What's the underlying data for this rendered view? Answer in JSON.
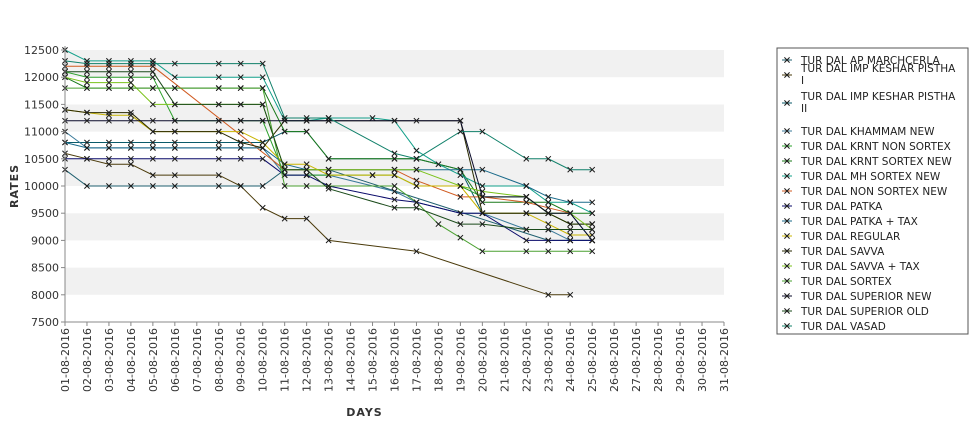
{
  "chart_data": {
    "type": "line",
    "title": "",
    "xlabel": "DAYS",
    "ylabel": "RATES",
    "ylim": [
      7500,
      12500
    ],
    "yticks": [
      7500,
      8000,
      8500,
      9000,
      9500,
      10000,
      10500,
      11000,
      11500,
      12000,
      12500
    ],
    "grid": "alternating horizontal bands",
    "legend_position": "right",
    "marker": "x",
    "x": [
      "01-08-2016",
      "02-08-2016",
      "03-08-2016",
      "04-08-2016",
      "05-08-2016",
      "06-08-2016",
      "07-08-2016",
      "08-08-2016",
      "09-08-2016",
      "10-08-2016",
      "11-08-2016",
      "12-08-2016",
      "13-08-2016",
      "14-08-2016",
      "15-08-2016",
      "16-08-2016",
      "17-08-2016",
      "18-08-2016",
      "19-08-2016",
      "20-08-2016",
      "21-08-2016",
      "22-08-2016",
      "23-08-2016",
      "24-08-2016",
      "25-08-2016",
      "26-08-2016",
      "27-08-2016",
      "28-08-2016",
      "29-08-2016",
      "30-08-2016",
      "31-08-2016"
    ],
    "series": [
      {
        "name": "TUR DAL AP MARCHCERLA",
        "color": "#1f5f6f",
        "values": [
          10300,
          10000,
          10000,
          10000,
          10000,
          10000,
          null,
          10000,
          10000,
          10000,
          10300,
          10300,
          10300,
          null,
          null,
          null,
          null,
          null,
          null,
          null,
          null,
          null,
          9000,
          9000,
          9000,
          null,
          null,
          null,
          null,
          null,
          null
        ]
      },
      {
        "name": "TUR DAL IMP KESHAR PISTHA I",
        "color": "#4a3a0a",
        "values": [
          10600,
          10500,
          10400,
          10400,
          10200,
          10200,
          null,
          10200,
          10000,
          9600,
          9400,
          9400,
          9000,
          null,
          null,
          null,
          8800,
          null,
          null,
          null,
          null,
          null,
          8000,
          8000,
          null,
          null,
          null,
          null,
          null,
          null,
          null
        ]
      },
      {
        "name": "TUR DAL IMP KESHAR PISTHA II",
        "color": "#0a5a6a",
        "values": [
          10800,
          10800,
          10800,
          10800,
          10800,
          10800,
          null,
          10800,
          10800,
          10800,
          11000,
          11000,
          10500,
          null,
          null,
          10500,
          10500,
          null,
          10300,
          9500,
          null,
          9500,
          9500,
          9500,
          9000,
          null,
          null,
          null,
          null,
          null,
          null
        ]
      },
      {
        "name": "TUR DAL KHAMMAM NEW",
        "color": "#3a7a9a",
        "values": [
          11000,
          10700,
          10700,
          10700,
          10700,
          10700,
          null,
          10700,
          10700,
          10700,
          10200,
          10200,
          10200,
          null,
          null,
          9900,
          9700,
          null,
          9500,
          9500,
          null,
          9200,
          9200,
          9000,
          9000,
          null,
          null,
          null,
          null,
          null,
          null
        ]
      },
      {
        "name": "TUR DAL KRNT NON SORTEX",
        "color": "#2aa02a",
        "values": [
          12100,
          12000,
          12000,
          12000,
          12000,
          11200,
          null,
          11200,
          11200,
          11200,
          10200,
          10200,
          10200,
          null,
          10200,
          10200,
          10000,
          null,
          10000,
          9800,
          null,
          9800,
          9500,
          9300,
          9300,
          null,
          null,
          null,
          null,
          null,
          null
        ]
      },
      {
        "name": "TUR DAL KRNT SORTEX NEW",
        "color": "#1a7a1a",
        "values": [
          12000,
          11800,
          11800,
          11800,
          11800,
          11800,
          null,
          11800,
          11800,
          11800,
          11000,
          11000,
          10500,
          null,
          null,
          10500,
          10500,
          null,
          10300,
          9700,
          null,
          9700,
          9700,
          9500,
          9500,
          null,
          null,
          null,
          null,
          null,
          null
        ]
      },
      {
        "name": "TUR DAL MH SORTEX NEW",
        "color": "#12a08a",
        "values": [
          12500,
          12300,
          12300,
          12300,
          12300,
          12000,
          null,
          12000,
          12000,
          12000,
          11200,
          11200,
          11250,
          null,
          11250,
          11200,
          10650,
          10400,
          10200,
          10000,
          null,
          10000,
          9700,
          9700,
          9500,
          null,
          null,
          null,
          null,
          null,
          null
        ]
      },
      {
        "name": "TUR DAL NON SORTEX NEW",
        "color": "#d05a20",
        "values": [
          12200,
          12200,
          12200,
          12200,
          12200,
          null,
          null,
          null,
          null,
          null,
          10300,
          10300,
          10300,
          null,
          null,
          10300,
          10100,
          null,
          9800,
          9800,
          null,
          9700,
          9600,
          9500,
          null,
          null,
          null,
          null,
          null,
          null,
          null
        ]
      },
      {
        "name": "TUR DAL PATKA",
        "color": "#0a0a6a",
        "values": [
          10500,
          10500,
          10500,
          10500,
          10500,
          10500,
          null,
          10500,
          10500,
          10500,
          10200,
          10200,
          10000,
          null,
          null,
          9750,
          9700,
          null,
          9500,
          9500,
          null,
          9000,
          9000,
          9000,
          9000,
          null,
          null,
          null,
          null,
          null,
          null
        ]
      },
      {
        "name": "TUR DAL PATKA + TAX",
        "color": "#1a6a8a",
        "values": [
          10800,
          10700,
          10700,
          10700,
          10700,
          10700,
          null,
          10700,
          10700,
          10700,
          10400,
          10300,
          10300,
          null,
          null,
          10300,
          10300,
          null,
          10300,
          10300,
          null,
          10000,
          9800,
          9700,
          9700,
          null,
          null,
          null,
          null,
          null,
          null
        ]
      },
      {
        "name": "TUR DAL REGULAR",
        "color": "#c8b400",
        "values": [
          11400,
          11350,
          11300,
          11300,
          11000,
          11000,
          null,
          11000,
          11000,
          10800,
          10400,
          10400,
          10200,
          null,
          10200,
          10200,
          10000,
          null,
          10000,
          9500,
          null,
          9500,
          9300,
          9100,
          9100,
          null,
          null,
          null,
          null,
          null,
          null
        ]
      },
      {
        "name": "TUR DAL SAVVA",
        "color": "#2a2a00",
        "values": [
          11400,
          11350,
          11350,
          11350,
          11000,
          11000,
          null,
          11000,
          10800,
          10700,
          11200,
          11200,
          11200,
          null,
          null,
          null,
          null,
          null,
          11200,
          9500,
          null,
          9500,
          9500,
          9300,
          9300,
          null,
          null,
          null,
          null,
          null,
          null
        ]
      },
      {
        "name": "TUR DAL SAVVA + TAX",
        "color": "#7ac21a",
        "values": [
          12000,
          11900,
          11900,
          11900,
          11500,
          11500,
          null,
          11500,
          11500,
          11500,
          10300,
          10300,
          10300,
          null,
          null,
          10300,
          10300,
          null,
          10000,
          9900,
          null,
          9800,
          9500,
          9500,
          9200,
          null,
          null,
          null,
          null,
          null,
          null
        ]
      },
      {
        "name": "TUR DAL SORTEX",
        "color": "#4aa030",
        "values": [
          11800,
          11800,
          11800,
          11800,
          11800,
          11800,
          null,
          11800,
          11800,
          11800,
          10000,
          10000,
          10000,
          null,
          null,
          10000,
          9700,
          9300,
          9050,
          8800,
          null,
          8800,
          8800,
          8800,
          8800,
          null,
          null,
          null,
          null,
          null,
          null
        ]
      },
      {
        "name": "TUR DAL SUPERIOR NEW",
        "color": "#0a0a2a",
        "values": [
          11200,
          11200,
          11200,
          11200,
          11200,
          11200,
          null,
          11200,
          11200,
          11200,
          11200,
          11200,
          11200,
          null,
          null,
          11200,
          11200,
          null,
          11200,
          9800,
          null,
          9800,
          9500,
          9500,
          9000,
          null,
          null,
          null,
          null,
          null,
          null
        ]
      },
      {
        "name": "TUR DAL SUPERIOR OLD",
        "color": "#1a4a1a",
        "values": [
          12100,
          12100,
          12100,
          12100,
          12100,
          11500,
          null,
          11500,
          11500,
          11500,
          10300,
          10300,
          9950,
          null,
          null,
          9600,
          9600,
          null,
          9300,
          9300,
          null,
          9200,
          9200,
          9200,
          9200,
          null,
          null,
          null,
          null,
          null,
          null
        ]
      },
      {
        "name": "TUR DAL VASAD",
        "color": "#10806a",
        "values": [
          12300,
          12250,
          12250,
          12250,
          12250,
          12250,
          null,
          12250,
          12250,
          12250,
          11250,
          11250,
          11250,
          null,
          null,
          10600,
          10500,
          null,
          11000,
          11000,
          null,
          10500,
          10500,
          10300,
          10300,
          null,
          null,
          null,
          null,
          null,
          null
        ]
      }
    ]
  }
}
